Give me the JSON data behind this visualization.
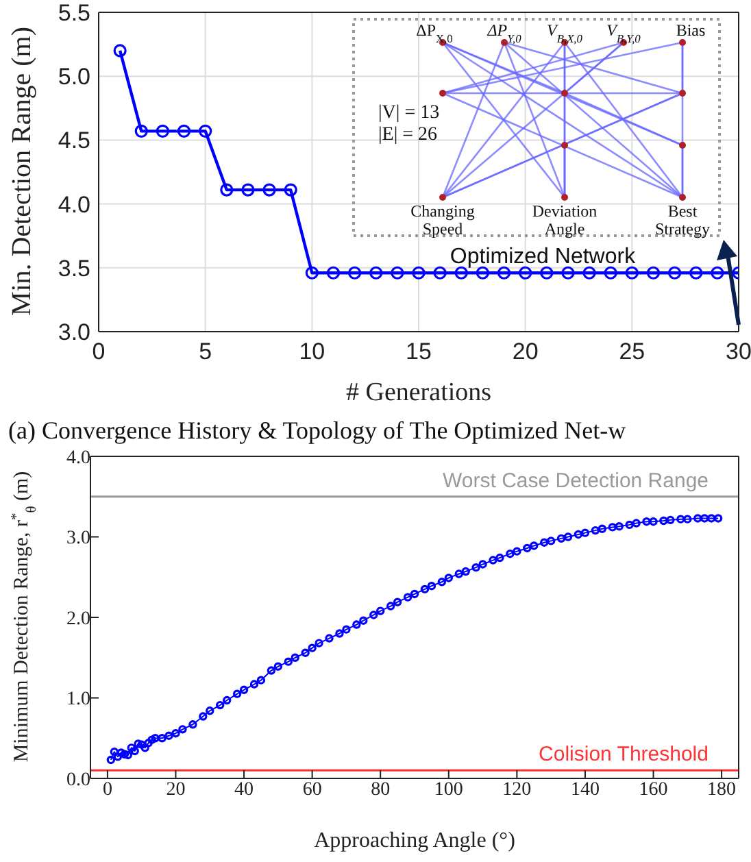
{
  "chart_data": [
    {
      "type": "line",
      "xlabel": "# Generations",
      "ylabel": "Min. Detection Range (m)",
      "x": [
        1,
        2,
        3,
        4,
        5,
        6,
        7,
        8,
        9,
        10,
        11,
        12,
        13,
        14,
        15,
        16,
        17,
        18,
        19,
        20,
        21,
        22,
        23,
        24,
        25,
        26,
        27,
        28,
        29,
        30
      ],
      "series": [
        {
          "color": "#0000ff",
          "values": [
            5.2,
            4.57,
            4.57,
            4.57,
            4.57,
            4.11,
            4.11,
            4.11,
            4.11,
            3.46,
            3.46,
            3.46,
            3.46,
            3.46,
            3.46,
            3.46,
            3.46,
            3.46,
            3.46,
            3.46,
            3.46,
            3.46,
            3.46,
            3.46,
            3.46,
            3.46,
            3.46,
            3.46,
            3.46,
            3.46
          ]
        }
      ],
      "xlim": [
        0,
        30
      ],
      "xticks": [
        0,
        5,
        10,
        15,
        20,
        25,
        30
      ],
      "ylim": [
        3,
        5.5
      ],
      "yticks": [
        {
          "value": 3,
          "label": "3.0"
        },
        {
          "value": 3.5,
          "label": "3.5"
        },
        {
          "value": 4,
          "label": "4.0"
        },
        {
          "value": 4.5,
          "label": "4.5"
        },
        {
          "value": 5,
          "label": "5.0"
        },
        {
          "value": 5.5,
          "label": "5.5"
        }
      ],
      "grid": true,
      "marker": "circle",
      "line_style": "solid",
      "legend": false,
      "annotations": [
        "ΔP$_{X,0}$",
        "ΔP$_{Y,0}$",
        "V$_{B,X,0}$",
        "V$_{B,Y,0}$",
        "Bias",
        "|V| = 13",
        "|E| = 26",
        "Changing Speed",
        "Deviation Angle",
        "Best Strategy",
        "Optimized Network",
        "(a) Convergence History & Topology of The Optimized Net-w"
      ]
    },
    {
      "type": "line",
      "xlabel": "Approaching Angle (°)",
      "ylabel": "Minimum Detection Range, r$^{*}$$_{θ}$ (m)",
      "x": [
        1,
        2,
        3,
        4,
        5,
        6,
        7,
        8,
        9,
        10,
        11,
        12,
        13,
        14,
        16,
        18,
        20,
        22,
        25,
        28,
        30,
        33,
        35,
        38,
        40,
        43,
        45,
        48,
        50,
        53,
        55,
        58,
        60,
        62,
        65,
        68,
        70,
        73,
        75,
        78,
        80,
        83,
        85,
        88,
        90,
        93,
        95,
        98,
        100,
        103,
        105,
        108,
        110,
        113,
        115,
        118,
        120,
        123,
        125,
        128,
        130,
        133,
        135,
        138,
        140,
        143,
        145,
        148,
        150,
        153,
        155,
        158,
        160,
        163,
        165,
        168,
        170,
        173,
        175,
        177,
        179
      ],
      "series": [
        {
          "color": "#0000ff",
          "values": [
            0.23,
            0.33,
            0.27,
            0.32,
            0.3,
            0.29,
            0.38,
            0.34,
            0.43,
            0.42,
            0.38,
            0.44,
            0.48,
            0.5,
            0.5,
            0.53,
            0.56,
            0.61,
            0.67,
            0.77,
            0.84,
            0.91,
            0.97,
            1.05,
            1.1,
            1.17,
            1.22,
            1.34,
            1.39,
            1.45,
            1.5,
            1.56,
            1.62,
            1.68,
            1.74,
            1.8,
            1.85,
            1.91,
            1.96,
            2.03,
            2.08,
            2.14,
            2.19,
            2.25,
            2.29,
            2.35,
            2.39,
            2.44,
            2.49,
            2.54,
            2.57,
            2.62,
            2.66,
            2.71,
            2.74,
            2.79,
            2.82,
            2.86,
            2.89,
            2.93,
            2.95,
            2.98,
            3.0,
            3.03,
            3.05,
            3.08,
            3.1,
            3.12,
            3.13,
            3.15,
            3.17,
            3.19,
            3.19,
            3.2,
            3.21,
            3.22,
            3.22,
            3.23,
            3.23,
            3.23,
            3.23
          ]
        }
      ],
      "xlim": [
        -5,
        185
      ],
      "xticks": [
        0,
        20,
        40,
        60,
        80,
        100,
        120,
        140,
        160,
        180
      ],
      "ylim": [
        0,
        4
      ],
      "yticks": [
        {
          "value": 0,
          "label": "0.0"
        },
        {
          "value": 1,
          "label": "1.0"
        },
        {
          "value": 2,
          "label": "2.0"
        },
        {
          "value": 3,
          "label": "3.0"
        },
        {
          "value": 4,
          "label": "4.0"
        }
      ],
      "grid": false,
      "marker": "circle",
      "line_style": "solid",
      "legend": false,
      "ref_lines": [
        {
          "axis": "y",
          "value": 3.5,
          "label": "Worst Case Detection Range",
          "color": "#999999"
        },
        {
          "axis": "y",
          "value": 0.1,
          "label": "Colision Threshold",
          "color": "#ff3333"
        }
      ]
    }
  ]
}
